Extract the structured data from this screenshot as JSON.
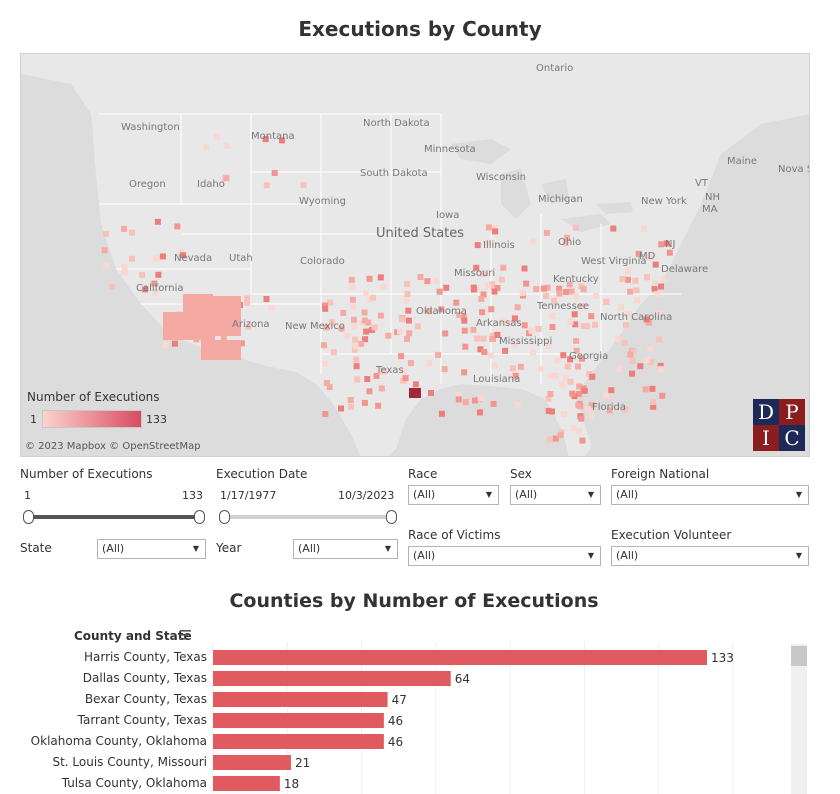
{
  "title": "Executions by County",
  "map": {
    "labels": [
      "Ontario",
      "Washington",
      "Montana",
      "North Dakota",
      "Minnesota",
      "Oregon",
      "Idaho",
      "South Dakota",
      "Wisconsin",
      "Wyoming",
      "Michigan",
      "New York",
      "Maine",
      "Nova Scotia",
      "VT",
      "NH",
      "MA",
      "Iowa",
      "Nevada",
      "Utah",
      "Colorado",
      "United States",
      "Illinois",
      "Ohio",
      "NJ",
      "California",
      "Missouri",
      "Kentucky",
      "West Virginia",
      "MD",
      "Delaware",
      "Oklahoma",
      "Arkansas",
      "Tennessee",
      "North Carolina",
      "Arizona",
      "New Mexico",
      "Mississippi",
      "Georgia",
      "Texas",
      "Louisiana",
      "Florida"
    ],
    "legend_title": "Number of Executions",
    "legend_min": "1",
    "legend_max": "133",
    "attribution": "© 2023 Mapbox  © OpenStreetMap",
    "logo_letters": [
      "D",
      "P",
      "I",
      "C"
    ]
  },
  "filters": {
    "num_exec": {
      "label": "Number of Executions",
      "min": "1",
      "max": "133"
    },
    "exec_date": {
      "label": "Execution Date",
      "min": "1/17/1977",
      "max": "10/3/2023"
    },
    "race": {
      "label": "Race",
      "value": "(All)"
    },
    "sex": {
      "label": "Sex",
      "value": "(All)"
    },
    "foreign": {
      "label": "Foreign National",
      "value": "(All)"
    },
    "state": {
      "label": "State",
      "value": "(All)"
    },
    "year": {
      "label": "Year",
      "value": "(All)"
    },
    "race_victims": {
      "label": "Race of Victims",
      "value": "(All)"
    },
    "volunteer": {
      "label": "Execution Volunteer",
      "value": "(All)"
    }
  },
  "chart_data": {
    "type": "bar",
    "orientation": "horizontal",
    "title": "Counties by Number of Executions",
    "ylabel": "County and State",
    "categories": [
      "Harris County, Texas",
      "Dallas County, Texas",
      "Bexar County, Texas",
      "Tarrant County, Texas",
      "Oklahoma County, Oklahoma",
      "St. Louis County, Missouri",
      "Tulsa County, Oklahoma"
    ],
    "values": [
      133,
      64,
      47,
      46,
      46,
      21,
      18
    ],
    "xlim": [
      0,
      140
    ],
    "color": "#e05a5f",
    "grid": true
  },
  "colors": {
    "bar": "#e05a5f",
    "map_land": "#e8e8e8",
    "map_water": "#dcdcdc",
    "dpic_red": "#8a1d1d",
    "dpic_navy": "#1d2a57"
  }
}
